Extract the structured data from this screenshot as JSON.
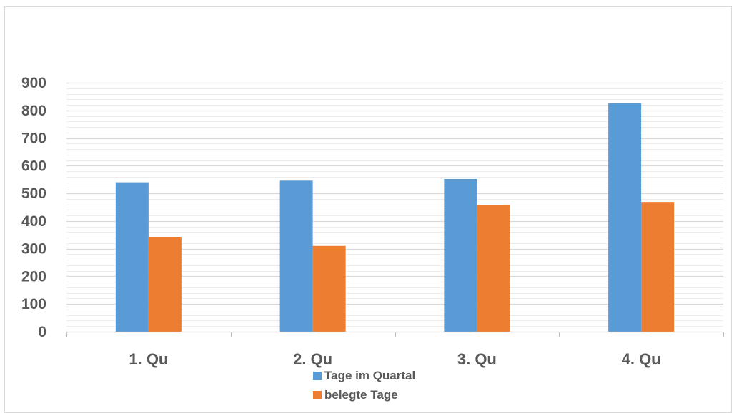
{
  "chart_data": {
    "type": "bar",
    "title": "",
    "xlabel": "",
    "ylabel": "",
    "categories": [
      "1. Qu",
      "2. Qu",
      "3. Qu",
      "4. Qu"
    ],
    "series": [
      {
        "name": "Tage im Quartal",
        "values": [
          540,
          546,
          552,
          826
        ],
        "color": "#5b9bd5"
      },
      {
        "name": "belegte Tage",
        "values": [
          343,
          310,
          458,
          469
        ],
        "color": "#ed7d31"
      }
    ],
    "ylim": [
      0,
      900
    ],
    "yticks": [
      0,
      100,
      200,
      300,
      400,
      500,
      600,
      700,
      800,
      900
    ],
    "minor_gridlines_per_major": 5,
    "grid": true,
    "legend_position": "bottom",
    "colors": {
      "grid": "#d9d9d9",
      "axis": "#bfbfbf",
      "text": "#595959"
    }
  }
}
